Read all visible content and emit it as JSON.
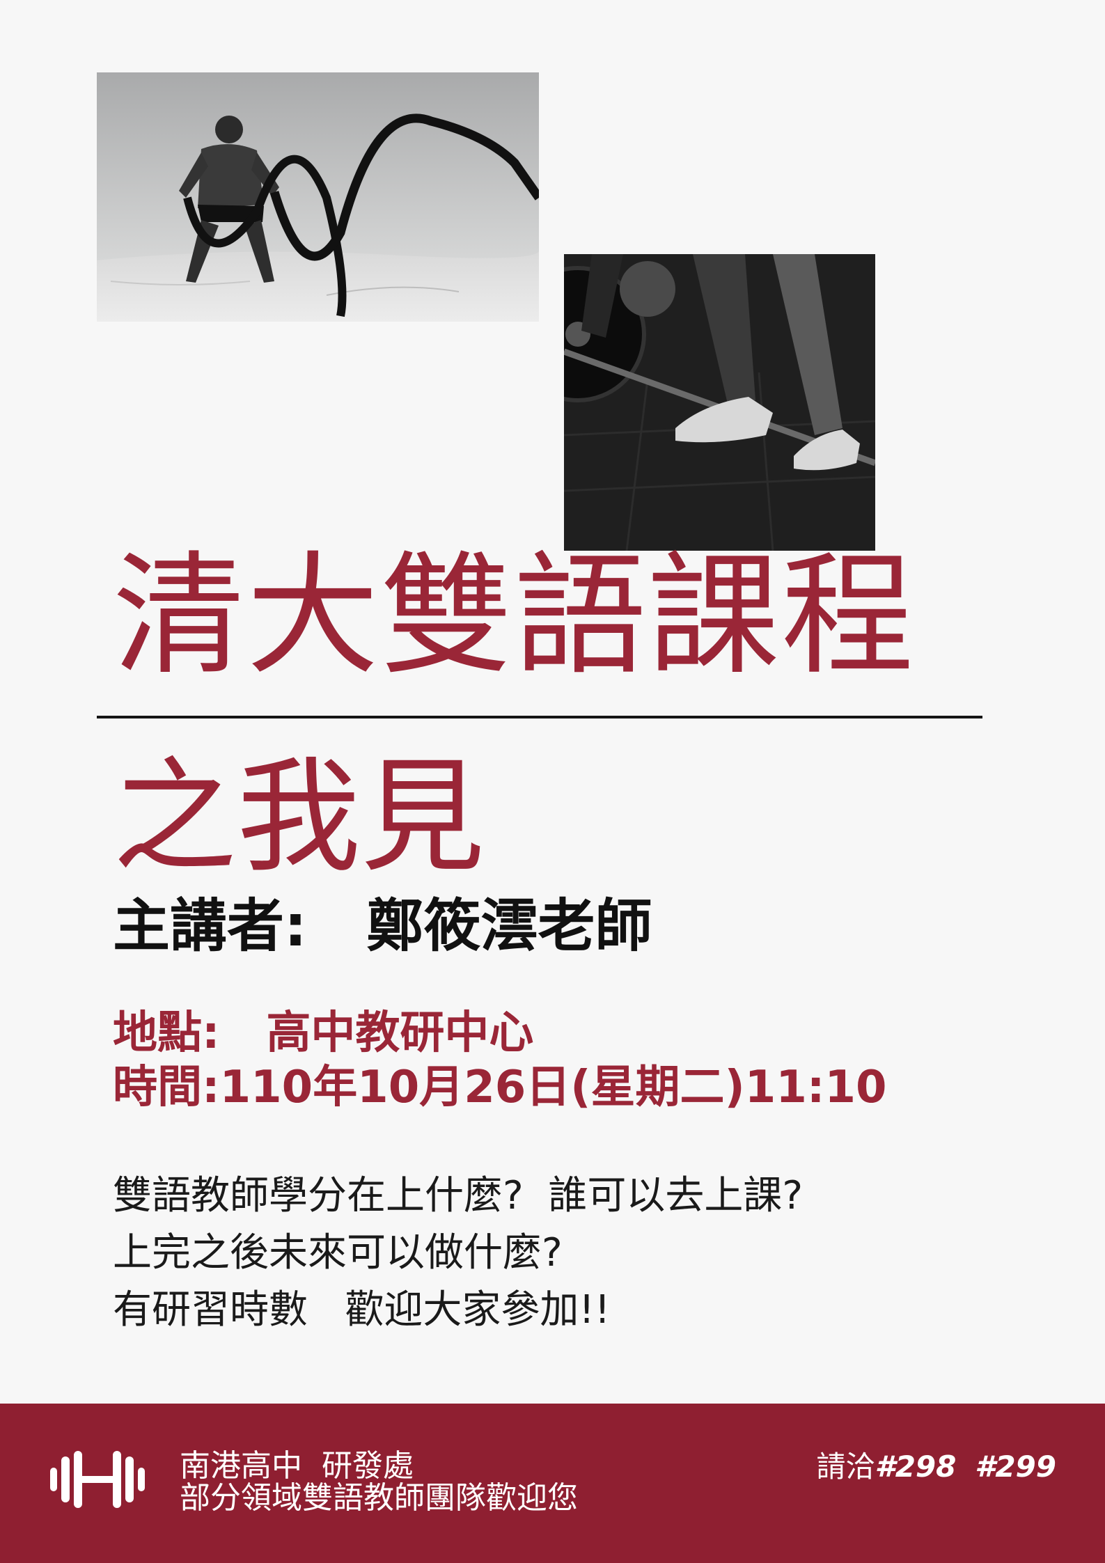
{
  "colors": {
    "accent": "#9a2637",
    "footer_bg": "#8f1f31",
    "background": "#f7f7f7"
  },
  "title": {
    "main": "清大雙語課程",
    "sub": "之我見"
  },
  "speaker": {
    "label": "主講者:",
    "name": "鄭筱澐老師"
  },
  "details": {
    "location_label": "地點:",
    "location_value": "高中教研中心",
    "time_label": "時間:",
    "time_value": "110年10月26日(星期二)11:10"
  },
  "description": [
    "雙語教師學分在上什麼?  誰可以去上課?",
    "上完之後未來可以做什麼?",
    "有研習時數   歡迎大家參加!!"
  ],
  "footer": {
    "icon": "dumbbell-icon",
    "line1": "南港高中  研發處",
    "line2": "部分領域雙語教師團隊歡迎您",
    "contact_label": "請洽",
    "ext1": "#298",
    "ext2": "#299"
  }
}
